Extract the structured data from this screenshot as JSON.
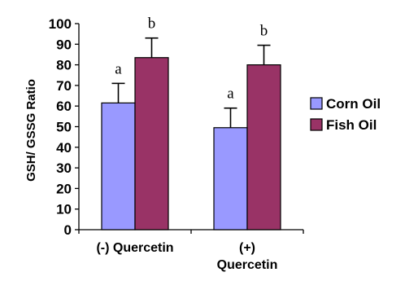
{
  "chart_data": {
    "type": "bar",
    "ylabel": "GSH/ GSSG Ratio",
    "xlabel": "",
    "ylim": [
      0,
      100
    ],
    "yticks": [
      0,
      10,
      20,
      30,
      40,
      50,
      60,
      70,
      80,
      90,
      100
    ],
    "grid": false,
    "legend_position": "right",
    "categories": [
      {
        "lines": [
          "(-) Quercetin"
        ]
      },
      {
        "lines": [
          "(+)",
          "Quercetin"
        ]
      }
    ],
    "series": [
      {
        "name": "Corn Oil",
        "color": "#9999ff",
        "values": [
          61.5,
          49.5
        ],
        "errors": [
          9.5,
          9.5
        ],
        "labels": [
          "a",
          "a"
        ]
      },
      {
        "name": "Fish Oil",
        "color": "#993366",
        "values": [
          83.5,
          80
        ],
        "errors": [
          9.5,
          9.5
        ],
        "labels": [
          "b",
          "b"
        ]
      }
    ]
  }
}
